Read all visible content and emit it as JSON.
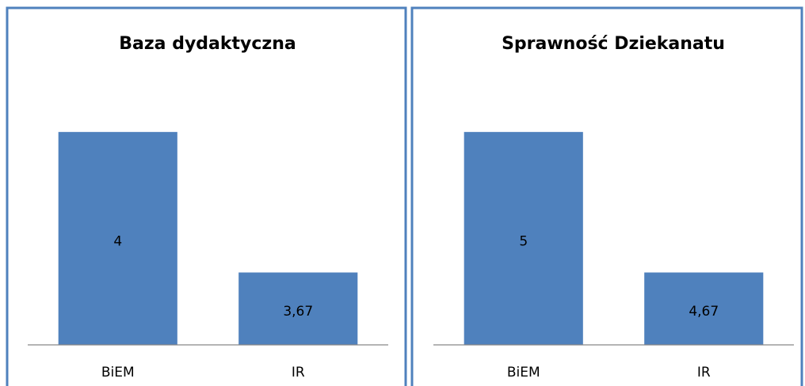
{
  "chart_data": [
    {
      "type": "bar",
      "title": "Baza dydaktyczna",
      "categories": [
        "BiEM",
        "IR"
      ],
      "values": [
        4,
        3.67
      ],
      "value_labels": [
        "4",
        "3,67"
      ],
      "color": "#4f81bd",
      "ylim": [
        3.5,
        4.1
      ]
    },
    {
      "type": "bar",
      "title": "Sprawność Dziekanatu",
      "categories": [
        "BiEM",
        "IR"
      ],
      "values": [
        5,
        4.67
      ],
      "value_labels": [
        "5",
        "4,67"
      ],
      "color": "#4f81bd",
      "ylim": [
        4.5,
        5.1
      ]
    }
  ]
}
